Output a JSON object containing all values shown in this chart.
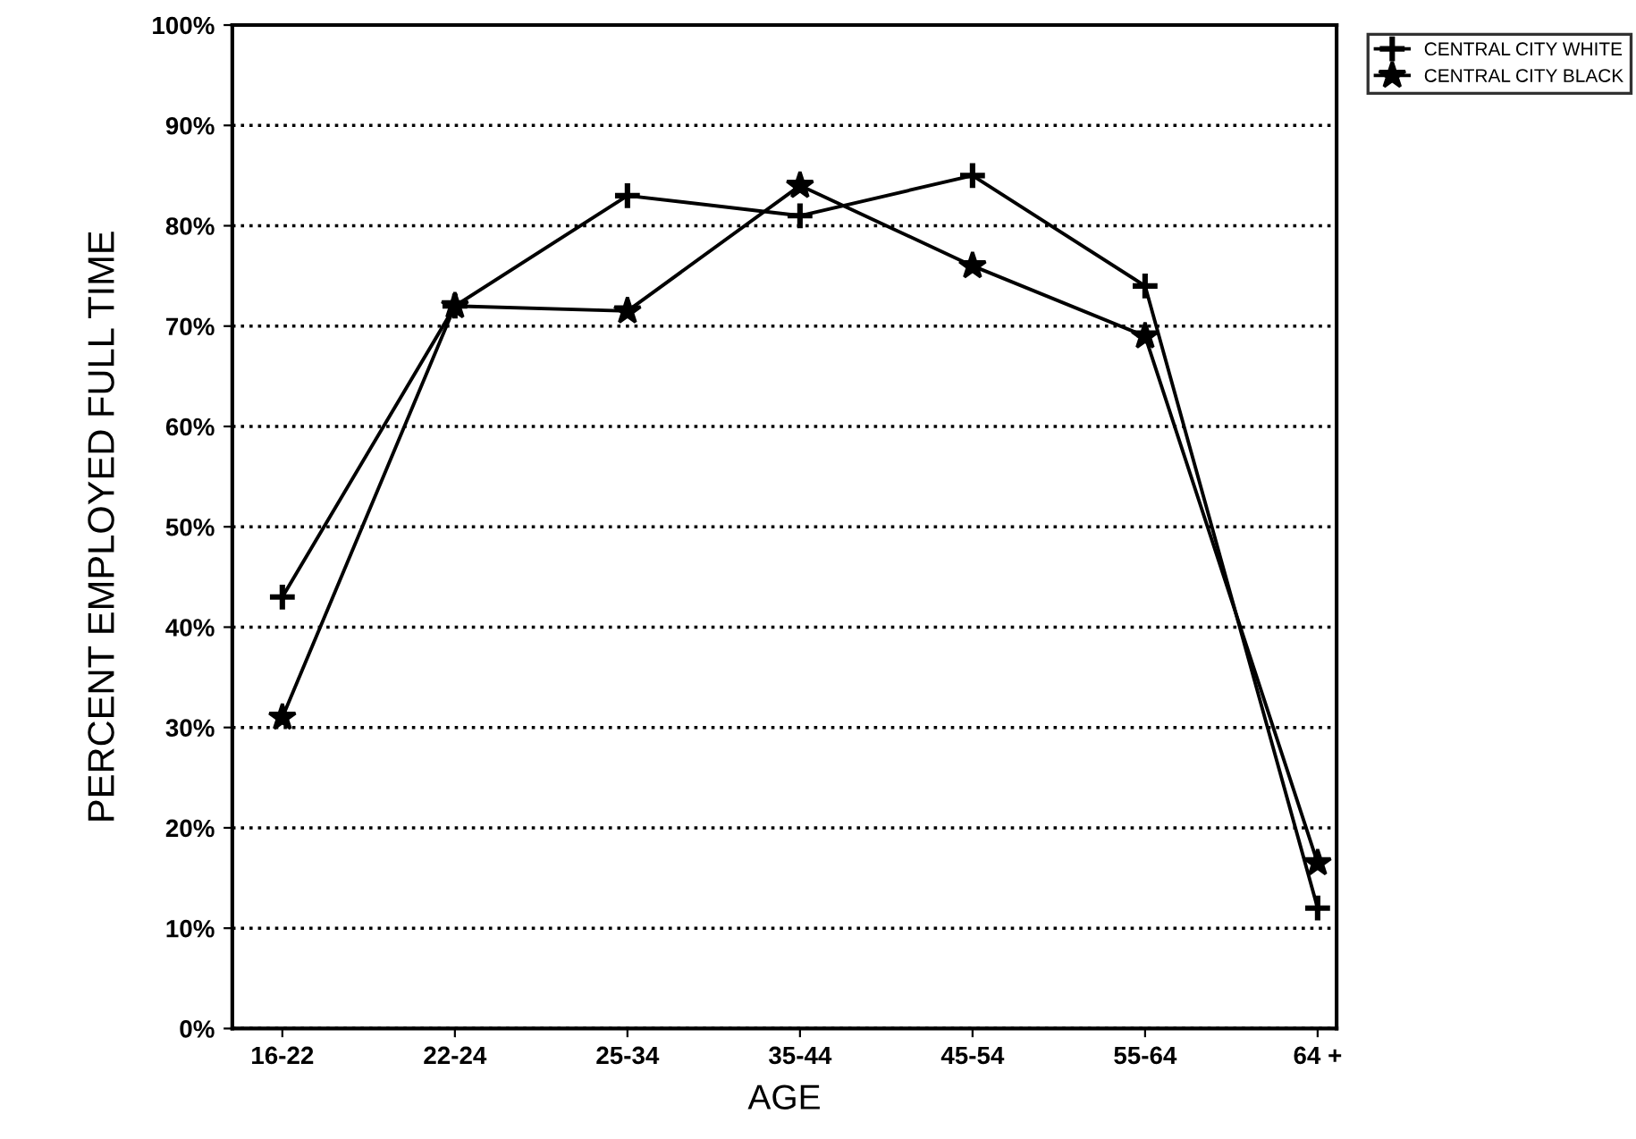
{
  "chart_data": {
    "type": "line",
    "xlabel": "AGE",
    "ylabel": "PERCENT EMPLOYED FULL TIME",
    "categories": [
      "16-22",
      "22-24",
      "25-34",
      "35-44",
      "45-54",
      "55-64",
      "64 +"
    ],
    "series": [
      {
        "name": "CENTRAL CITY WHITE",
        "color": "#000000",
        "marker": "cross",
        "values": [
          43,
          72,
          83,
          81,
          85,
          74,
          12
        ]
      },
      {
        "name": "CENTRAL CITY BLACK",
        "color": "#000000",
        "marker": "star",
        "values": [
          31,
          72,
          71.5,
          84,
          76,
          69,
          16.5
        ]
      }
    ],
    "ylim": [
      0,
      100
    ],
    "yticks": [
      {
        "value": 0,
        "label": "0%"
      },
      {
        "value": 10,
        "label": "10%"
      },
      {
        "value": 20,
        "label": "20%"
      },
      {
        "value": 30,
        "label": "30%"
      },
      {
        "value": 40,
        "label": "40%"
      },
      {
        "value": 50,
        "label": "50%"
      },
      {
        "value": 60,
        "label": "60%"
      },
      {
        "value": 70,
        "label": "70%"
      },
      {
        "value": 80,
        "label": "80%"
      },
      {
        "value": 90,
        "label": "90%"
      },
      {
        "value": 100,
        "label": "100%"
      }
    ],
    "grid": "y",
    "legend": "top right",
    "line_style": "solid"
  }
}
